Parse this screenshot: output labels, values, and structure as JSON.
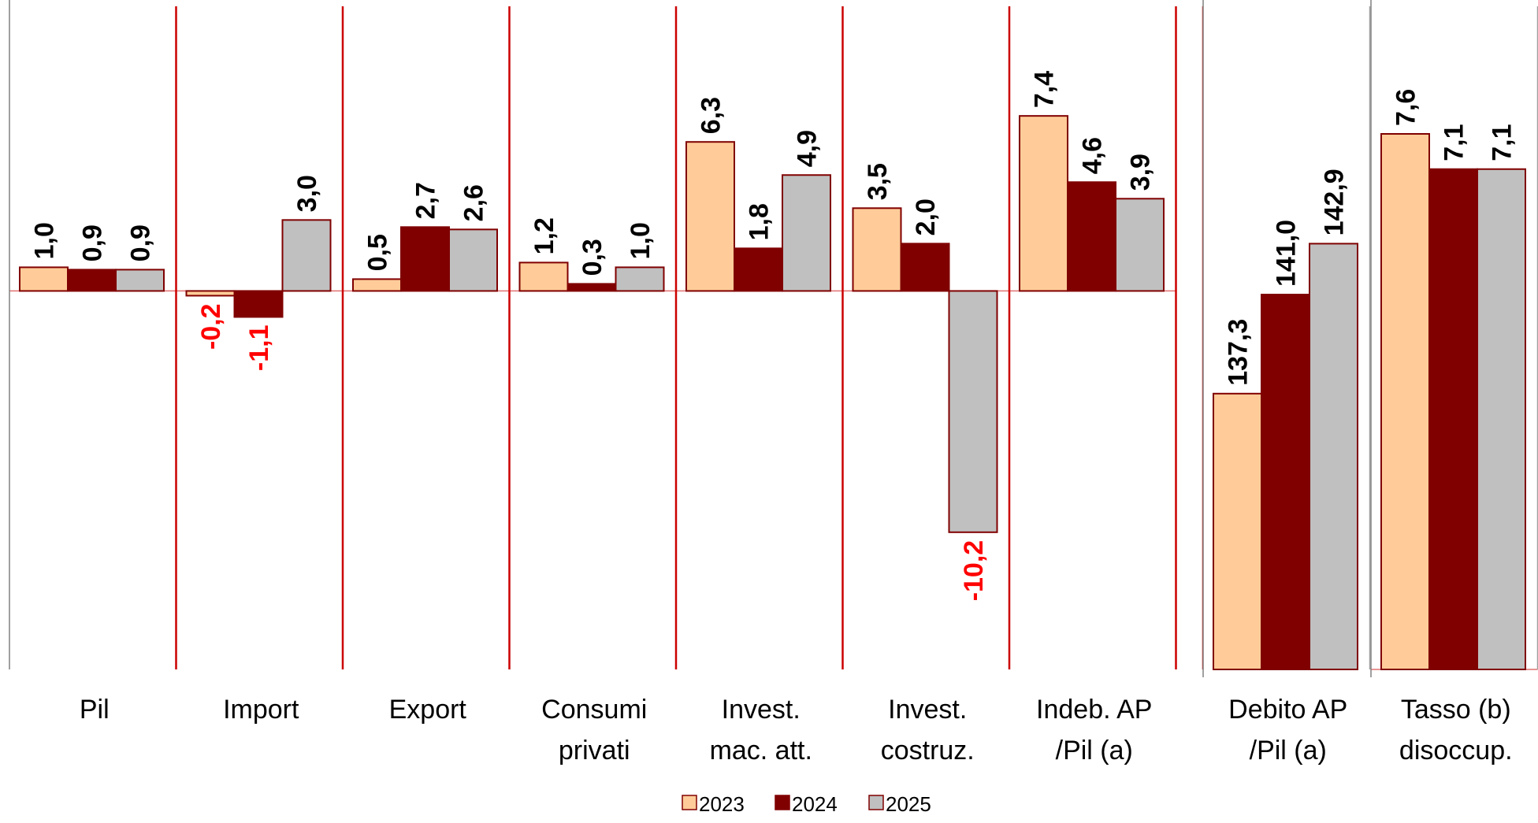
{
  "chart_data": {
    "type": "bar",
    "title": "",
    "xlabel": "",
    "ylabel": "",
    "grid": false,
    "legend_position": "bottom",
    "series_names": [
      "2023",
      "2024",
      "2025"
    ],
    "colors": {
      "2023": "#FFCC99",
      "2024": "#800000",
      "2025": "#C0C0C0",
      "bar_border": "#800000",
      "divider": "#CC0000",
      "zero_line": "#E07070",
      "negative_label": "#FF0000",
      "positive_label": "#000000"
    },
    "panels": [
      {
        "name": "growth",
        "ylim": [
          -16,
          12.3
        ],
        "categories": [
          {
            "label_lines": [
              "Pil"
            ],
            "values": [
              1.0,
              0.9,
              0.9
            ],
            "labels": [
              "1,0",
              "0,9",
              "0,9"
            ]
          },
          {
            "label_lines": [
              "Import"
            ],
            "values": [
              -0.2,
              -1.1,
              3.0
            ],
            "labels": [
              "-0,2",
              "-1,1",
              "3,0"
            ]
          },
          {
            "label_lines": [
              "Export"
            ],
            "values": [
              0.5,
              2.7,
              2.6
            ],
            "labels": [
              "0,5",
              "2,7",
              "2,6"
            ]
          },
          {
            "label_lines": [
              "Consumi",
              "privati"
            ],
            "values": [
              1.2,
              0.3,
              1.0
            ],
            "labels": [
              "1,2",
              "0,3",
              "1,0"
            ]
          },
          {
            "label_lines": [
              "Invest.",
              "mac. att."
            ],
            "values": [
              6.3,
              1.8,
              4.9
            ],
            "labels": [
              "6,3",
              "1,8",
              "4,9"
            ]
          },
          {
            "label_lines": [
              "Invest.",
              "costruz."
            ],
            "values": [
              3.5,
              2.0,
              -10.2
            ],
            "labels": [
              "3,5",
              "2,0",
              "-10,2"
            ]
          },
          {
            "label_lines": [
              "Indeb. AP",
              "/Pil (a)"
            ],
            "values": [
              7.4,
              4.6,
              3.9
            ],
            "labels": [
              "7,4",
              "4,6",
              "3,9"
            ]
          }
        ]
      },
      {
        "name": "debt",
        "ylim": [
          127,
          152
        ],
        "categories": [
          {
            "label_lines": [
              "Debito AP",
              "/Pil (a)"
            ],
            "values": [
              137.3,
              141.0,
              142.9
            ],
            "labels": [
              "137,3",
              "141,0",
              "142,9"
            ]
          }
        ]
      },
      {
        "name": "unemployment",
        "ylim": [
          0,
          9.5
        ],
        "categories": [
          {
            "label_lines": [
              "Tasso (b)",
              "disoccup."
            ],
            "values": [
              7.6,
              7.1,
              7.1
            ],
            "labels": [
              "7,6",
              "7,1",
              "7,1"
            ]
          }
        ]
      }
    ]
  }
}
